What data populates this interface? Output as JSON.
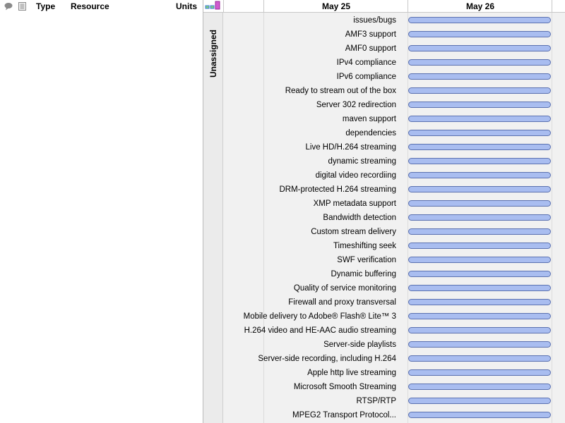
{
  "columns": {
    "type": "Type",
    "resource": "Resource",
    "units": "Units"
  },
  "timeline": {
    "dates": [
      "May 25",
      "May 26"
    ],
    "group_label": "Unassigned"
  },
  "colors": {
    "bar_fill": "#a9bdf0",
    "bar_border": "#5b71b0",
    "body_bg": "#f1f1f1"
  },
  "tasks": [
    {
      "name": "issues/bugs"
    },
    {
      "name": "AMF3 support"
    },
    {
      "name": "AMF0 support"
    },
    {
      "name": "IPv4 compliance"
    },
    {
      "name": "IPv6 compliance"
    },
    {
      "name": "Ready to stream out of the box"
    },
    {
      "name": "Server 302 redirection"
    },
    {
      "name": "maven support"
    },
    {
      "name": "dependencies"
    },
    {
      "name": "Live HD/H.264 streaming"
    },
    {
      "name": "dynamic streaming"
    },
    {
      "name": "digital video recordiing"
    },
    {
      "name": "DRM-protected H.264 streaming"
    },
    {
      "name": "XMP metadata support"
    },
    {
      "name": "Bandwidth detection"
    },
    {
      "name": "Custom stream delivery"
    },
    {
      "name": "Timeshifting seek"
    },
    {
      "name": "SWF verification"
    },
    {
      "name": "Dynamic buffering"
    },
    {
      "name": "Quality of service monitoring"
    },
    {
      "name": "Firewall and proxy transversal"
    },
    {
      "name": "Mobile delivery to Adobe® Flash® Lite™ 3"
    },
    {
      "name": "H.264 video and HE-AAC audio streaming"
    },
    {
      "name": "Server-side playlists"
    },
    {
      "name": "Server-side recording, including H.264"
    },
    {
      "name": "Apple http live streaming"
    },
    {
      "name": "Microsoft Smooth Streaming"
    },
    {
      "name": "RTSP/RTP"
    },
    {
      "name": "MPEG2 Transport Protocol..."
    }
  ]
}
